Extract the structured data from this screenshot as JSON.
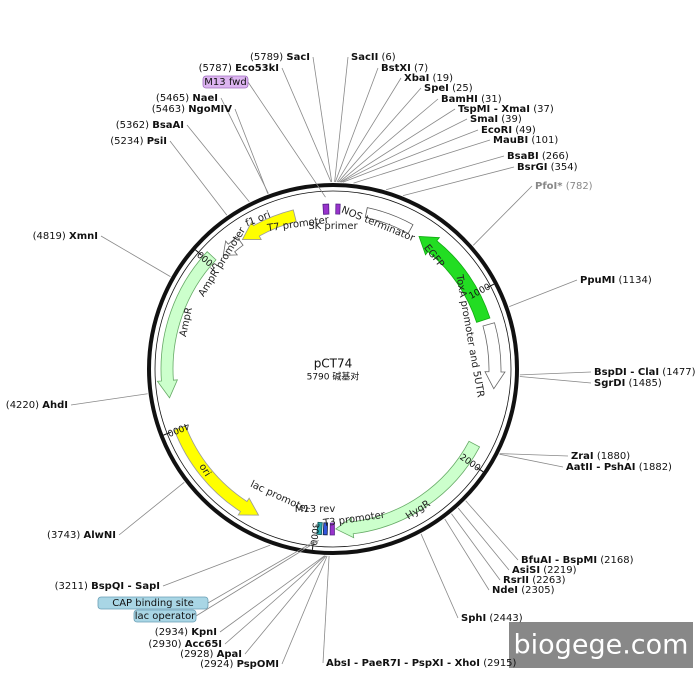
{
  "title": "pCT74",
  "subtitle": "5790 碱基对",
  "sites": [
    {
      "position": "(5789)",
      "name": "SacI"
    },
    {
      "position": "(5787)",
      "name": "Eco53kI"
    },
    {
      "position": "(5465)",
      "name": "NaeI"
    },
    {
      "position": "(5463)",
      "name": "NgoMIV"
    },
    {
      "position": "(5362)",
      "name": "BsaAI"
    },
    {
      "position": "(5234)",
      "name": "PsiI"
    },
    {
      "position": "(4819)",
      "name": "XmnI"
    },
    {
      "position": "(4220)",
      "name": "AhdI"
    },
    {
      "position": "(3743)",
      "name": "AlwNI"
    },
    {
      "position": "(3211)",
      "name": "BspQI - SapI"
    },
    {
      "position": "(2934)",
      "name": "KpnI"
    },
    {
      "position": "(2930)",
      "name": "Acc65I"
    },
    {
      "position": "(2928)",
      "name": "ApaI"
    },
    {
      "position": "(2924)",
      "name": "PspOMI"
    },
    {
      "position": "(6)",
      "name": "SacII"
    },
    {
      "position": "(7)",
      "name": "BstXI"
    },
    {
      "position": "(19)",
      "name": "XbaI"
    },
    {
      "position": "(25)",
      "name": "SpeI"
    },
    {
      "position": "(31)",
      "name": "BamHI"
    },
    {
      "position": "(37)",
      "name": "TspMI - XmaI"
    },
    {
      "position": "(39)",
      "name": "SmaI"
    },
    {
      "position": "(49)",
      "name": "EcoRI"
    },
    {
      "position": "(101)",
      "name": "MauBI"
    },
    {
      "position": "(266)",
      "name": "BsaBI"
    },
    {
      "position": "(354)",
      "name": "BsrGI"
    },
    {
      "position": "(782)",
      "name": "PfoI*"
    },
    {
      "position": "(1134)",
      "name": "PpuMI"
    },
    {
      "position": "(1477)",
      "name": "BspDI - ClaI"
    },
    {
      "position": "(1485)",
      "name": "SgrDI"
    },
    {
      "position": "(1880)",
      "name": "ZraI"
    },
    {
      "position": "(1882)",
      "name": "AatII - PshAI"
    },
    {
      "position": "(2168)",
      "name": "BfuAI - BspMI"
    },
    {
      "position": "(2219)",
      "name": "AsiSI"
    },
    {
      "position": "(2263)",
      "name": "RsrII"
    },
    {
      "position": "(2305)",
      "name": "NdeI"
    },
    {
      "position": "(2443)",
      "name": "SphI"
    },
    {
      "position": "(2915)",
      "name": "AbsI - PaeR7I - PspXI - XhoI"
    }
  ],
  "tags": [
    "M13 fwd",
    "CAP binding site",
    "lac operator"
  ],
  "features": [
    "f1 ori",
    "T7 promoter",
    "SK primer",
    "NOS terminator",
    "EGFP",
    "ToxA promoter and 5UTR",
    "AmpR promoter",
    "AmpR",
    "ori",
    "lac promoter",
    "M13 rev",
    "T3 promoter",
    "HygR"
  ],
  "ruler": [
    "1000",
    "2000",
    "3000",
    "4000",
    "5000"
  ],
  "watermark": "biogege.com"
}
